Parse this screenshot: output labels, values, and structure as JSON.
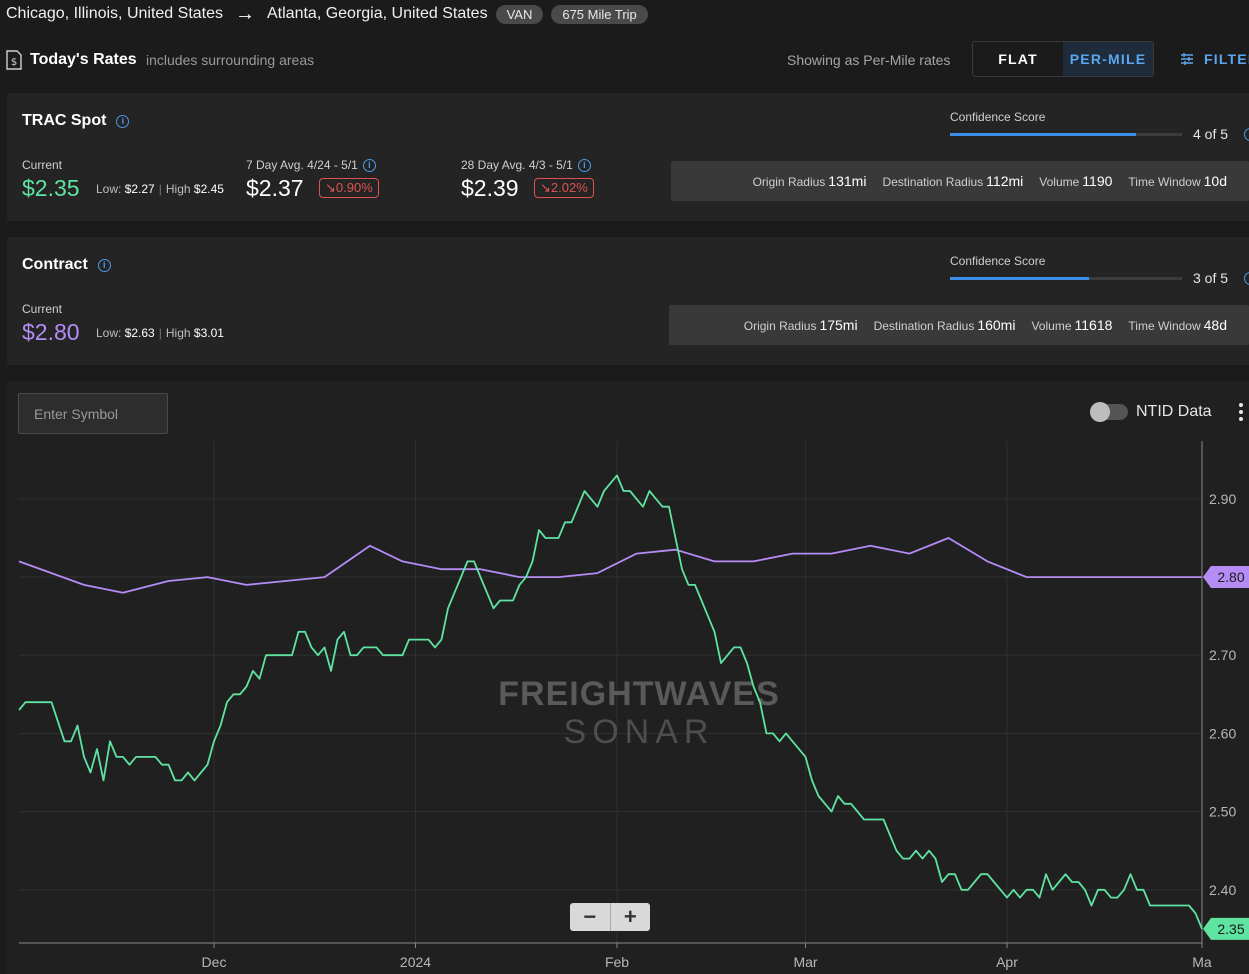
{
  "route": {
    "origin": "Chicago, Illinois, United States",
    "destination": "Atlanta, Georgia, United States",
    "equipment": "VAN",
    "trip": "675 Mile Trip"
  },
  "rates_bar": {
    "title": "Today's Rates",
    "subtitle": "includes surrounding areas",
    "showing": "Showing as Per-Mile rates",
    "flat_label": "FLAT",
    "per_mile_label": "PER-MILE",
    "filter_label": "FILTERS",
    "active": "PER-MILE"
  },
  "spot": {
    "title": "TRAC Spot",
    "current_label": "Current",
    "current": "$2.35",
    "low_label": "Low:",
    "low": "$2.27",
    "high_label": "High",
    "high": "$2.45",
    "avg7_label": "7 Day Avg. 4/24 - 5/1",
    "avg7": "$2.37",
    "avg7_change": "↘0.90%",
    "avg28_label": "28 Day Avg. 4/3 - 5/1",
    "avg28": "$2.39",
    "avg28_change": "↘2.02%",
    "confidence_label": "Confidence Score",
    "confidence_text": "4 of 5",
    "confidence": 0.8,
    "meta": [
      {
        "label": "Origin Radius",
        "value": "131mi"
      },
      {
        "label": "Destination Radius",
        "value": "112mi"
      },
      {
        "label": "Volume",
        "value": "1190"
      },
      {
        "label": "Time Window",
        "value": "10d"
      }
    ]
  },
  "contract": {
    "title": "Contract",
    "current_label": "Current",
    "current": "$2.80",
    "low_label": "Low:",
    "low": "$2.63",
    "high_label": "High",
    "high": "$3.01",
    "confidence_label": "Confidence Score",
    "confidence_text": "3 of 5",
    "confidence": 0.6,
    "meta": [
      {
        "label": "Origin Radius",
        "value": "175mi"
      },
      {
        "label": "Destination Radius",
        "value": "160mi"
      },
      {
        "label": "Volume",
        "value": "11618"
      },
      {
        "label": "Time Window",
        "value": "48d"
      }
    ]
  },
  "chart_toolbar": {
    "symbol_placeholder": "Enter Symbol",
    "ntid_label": "NTID Data",
    "ntid_on": false
  },
  "colors": {
    "spot": "#5fe3a1",
    "contract": "#b58cf5",
    "accent": "#3b8fe8",
    "down": "#e05252"
  },
  "chart_data": {
    "type": "line",
    "watermark": [
      "FREIGHTWAVES",
      "SONAR"
    ],
    "x_ticks": [
      {
        "label": "Dec",
        "day": 31
      },
      {
        "label": "2024",
        "day": 62
      },
      {
        "label": "Feb",
        "day": 93
      },
      {
        "label": "Mar",
        "day": 122
      },
      {
        "label": "Apr",
        "day": 153
      },
      {
        "label": "Ma",
        "day": 183
      }
    ],
    "xlim": [
      1,
      183
    ],
    "y_ticks": [
      2.4,
      2.5,
      2.6,
      2.7,
      2.8,
      2.9
    ],
    "ylim": [
      2.332,
      2.974
    ],
    "series": [
      {
        "name": "Spot",
        "last": "2.35",
        "points": [
          [
            1,
            2.63
          ],
          [
            2,
            2.64
          ],
          [
            6,
            2.64
          ],
          [
            8,
            2.59
          ],
          [
            9,
            2.59
          ],
          [
            10,
            2.61
          ],
          [
            11,
            2.57
          ],
          [
            12,
            2.55
          ],
          [
            13,
            2.58
          ],
          [
            14,
            2.54
          ],
          [
            15,
            2.59
          ],
          [
            16,
            2.57
          ],
          [
            17,
            2.57
          ],
          [
            18,
            2.56
          ],
          [
            19,
            2.57
          ],
          [
            22,
            2.57
          ],
          [
            23,
            2.56
          ],
          [
            24,
            2.56
          ],
          [
            25,
            2.54
          ],
          [
            26,
            2.54
          ],
          [
            27,
            2.55
          ],
          [
            28,
            2.54
          ],
          [
            29,
            2.55
          ],
          [
            30,
            2.56
          ],
          [
            31,
            2.59
          ],
          [
            32,
            2.61
          ],
          [
            33,
            2.64
          ],
          [
            34,
            2.65
          ],
          [
            35,
            2.65
          ],
          [
            36,
            2.66
          ],
          [
            37,
            2.68
          ],
          [
            38,
            2.67
          ],
          [
            39,
            2.7
          ],
          [
            42,
            2.7
          ],
          [
            43,
            2.7
          ],
          [
            44,
            2.73
          ],
          [
            45,
            2.73
          ],
          [
            46,
            2.71
          ],
          [
            47,
            2.7
          ],
          [
            48,
            2.71
          ],
          [
            49,
            2.68
          ],
          [
            50,
            2.72
          ],
          [
            51,
            2.73
          ],
          [
            52,
            2.7
          ],
          [
            53,
            2.7
          ],
          [
            54,
            2.71
          ],
          [
            56,
            2.71
          ],
          [
            57,
            2.7
          ],
          [
            60,
            2.7
          ],
          [
            61,
            2.72
          ],
          [
            64,
            2.72
          ],
          [
            65,
            2.71
          ],
          [
            66,
            2.72
          ],
          [
            67,
            2.76
          ],
          [
            68,
            2.78
          ],
          [
            69,
            2.8
          ],
          [
            70,
            2.82
          ],
          [
            71,
            2.82
          ],
          [
            72,
            2.8
          ],
          [
            73,
            2.78
          ],
          [
            74,
            2.76
          ],
          [
            75,
            2.77
          ],
          [
            77,
            2.77
          ],
          [
            78,
            2.79
          ],
          [
            79,
            2.8
          ],
          [
            80,
            2.82
          ],
          [
            81,
            2.86
          ],
          [
            82,
            2.85
          ],
          [
            84,
            2.85
          ],
          [
            85,
            2.87
          ],
          [
            86,
            2.87
          ],
          [
            87,
            2.89
          ],
          [
            88,
            2.91
          ],
          [
            89,
            2.9
          ],
          [
            90,
            2.89
          ],
          [
            91,
            2.91
          ],
          [
            92,
            2.92
          ],
          [
            93,
            2.93
          ],
          [
            94,
            2.91
          ],
          [
            95,
            2.91
          ],
          [
            96,
            2.9
          ],
          [
            97,
            2.89
          ],
          [
            98,
            2.91
          ],
          [
            99,
            2.9
          ],
          [
            100,
            2.89
          ],
          [
            101,
            2.89
          ],
          [
            102,
            2.85
          ],
          [
            103,
            2.81
          ],
          [
            104,
            2.79
          ],
          [
            105,
            2.79
          ],
          [
            106,
            2.77
          ],
          [
            107,
            2.75
          ],
          [
            108,
            2.73
          ],
          [
            109,
            2.69
          ],
          [
            110,
            2.7
          ],
          [
            111,
            2.71
          ],
          [
            112,
            2.71
          ],
          [
            113,
            2.69
          ],
          [
            114,
            2.66
          ],
          [
            115,
            2.64
          ],
          [
            116,
            2.6
          ],
          [
            117,
            2.6
          ],
          [
            118,
            2.59
          ],
          [
            119,
            2.6
          ],
          [
            120,
            2.59
          ],
          [
            121,
            2.58
          ],
          [
            122,
            2.57
          ],
          [
            123,
            2.54
          ],
          [
            124,
            2.52
          ],
          [
            125,
            2.51
          ],
          [
            126,
            2.5
          ],
          [
            127,
            2.52
          ],
          [
            128,
            2.51
          ],
          [
            129,
            2.51
          ],
          [
            130,
            2.5
          ],
          [
            131,
            2.49
          ],
          [
            134,
            2.49
          ],
          [
            135,
            2.47
          ],
          [
            136,
            2.45
          ],
          [
            137,
            2.44
          ],
          [
            138,
            2.44
          ],
          [
            139,
            2.45
          ],
          [
            140,
            2.44
          ],
          [
            141,
            2.45
          ],
          [
            142,
            2.44
          ],
          [
            143,
            2.41
          ],
          [
            144,
            2.42
          ],
          [
            145,
            2.42
          ],
          [
            146,
            2.4
          ],
          [
            147,
            2.4
          ],
          [
            148,
            2.41
          ],
          [
            149,
            2.42
          ],
          [
            150,
            2.42
          ],
          [
            151,
            2.41
          ],
          [
            152,
            2.4
          ],
          [
            153,
            2.39
          ],
          [
            154,
            2.4
          ],
          [
            155,
            2.39
          ],
          [
            156,
            2.4
          ],
          [
            157,
            2.4
          ],
          [
            158,
            2.39
          ],
          [
            159,
            2.42
          ],
          [
            160,
            2.4
          ],
          [
            161,
            2.41
          ],
          [
            162,
            2.42
          ],
          [
            163,
            2.41
          ],
          [
            164,
            2.41
          ],
          [
            165,
            2.4
          ],
          [
            166,
            2.38
          ],
          [
            167,
            2.4
          ],
          [
            168,
            2.4
          ],
          [
            169,
            2.39
          ],
          [
            170,
            2.39
          ],
          [
            171,
            2.4
          ],
          [
            172,
            2.42
          ],
          [
            173,
            2.4
          ],
          [
            174,
            2.4
          ],
          [
            175,
            2.38
          ],
          [
            181,
            2.38
          ],
          [
            182,
            2.37
          ],
          [
            183,
            2.35
          ]
        ]
      },
      {
        "name": "Contract",
        "last": "2.80",
        "points": [
          [
            1,
            2.82
          ],
          [
            11,
            2.79
          ],
          [
            17,
            2.78
          ],
          [
            24,
            2.795
          ],
          [
            30,
            2.8
          ],
          [
            36,
            2.79
          ],
          [
            42,
            2.795
          ],
          [
            48,
            2.8
          ],
          [
            55,
            2.84
          ],
          [
            60,
            2.82
          ],
          [
            66,
            2.81
          ],
          [
            72,
            2.81
          ],
          [
            78,
            2.8
          ],
          [
            84,
            2.8
          ],
          [
            90,
            2.805
          ],
          [
            96,
            2.83
          ],
          [
            102,
            2.835
          ],
          [
            108,
            2.82
          ],
          [
            114,
            2.82
          ],
          [
            120,
            2.83
          ],
          [
            126,
            2.83
          ],
          [
            132,
            2.84
          ],
          [
            138,
            2.83
          ],
          [
            144,
            2.85
          ],
          [
            150,
            2.82
          ],
          [
            156,
            2.8
          ],
          [
            162,
            2.8
          ],
          [
            168,
            2.8
          ],
          [
            174,
            2.8
          ],
          [
            183,
            2.8
          ]
        ]
      }
    ]
  }
}
